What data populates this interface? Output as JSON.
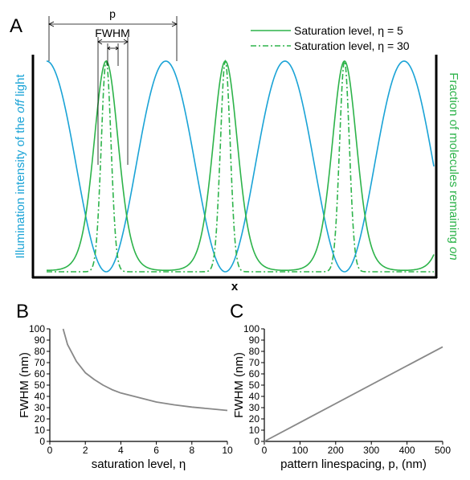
{
  "colors": {
    "illumination": "#1aa3d6",
    "molecules": "#2db34a",
    "fwhm_curve": "#888888",
    "axis": "#000000"
  },
  "figure": {
    "panel_a_label": "A",
    "panel_b_label": "B",
    "panel_c_label": "C",
    "annotation_p": "p",
    "annotation_fwhm": "FWHM"
  },
  "chart_data": [
    {
      "id": "A",
      "type": "line",
      "xlabel": "x",
      "ylabel_left_parts": [
        "Illumination intensity of the ",
        "off",
        " light"
      ],
      "ylabel_right_parts": [
        "Fraction of molecules remaining ",
        "on"
      ],
      "xlim": [
        0,
        3.25
      ],
      "ylim": [
        0,
        1
      ],
      "ticks": "none",
      "grid": false,
      "legend_position": "top-right",
      "legend": [
        {
          "label": "Saturation level, η = 5",
          "style": "solid"
        },
        {
          "label": "Saturation level, η = 30",
          "style": "dash-dot"
        }
      ],
      "series": [
        {
          "kind": "illumination",
          "formula": "cos^2(pi*x)",
          "style": "solid",
          "color_key": "illumination"
        },
        {
          "kind": "molecules",
          "eta": 5,
          "formula": "exp(-eta*cos^2(pi*x))",
          "style": "solid",
          "color_key": "molecules"
        },
        {
          "kind": "molecules",
          "eta": 30,
          "formula": "exp(-eta*cos^2(pi*x))",
          "style": "dash-dot",
          "color_key": "molecules"
        }
      ]
    },
    {
      "id": "B",
      "type": "line",
      "xlabel": "saturation level, η",
      "ylabel": "FWHM (nm)",
      "xlim": [
        0,
        10
      ],
      "ylim": [
        0,
        100
      ],
      "xticks": [
        0,
        2,
        4,
        6,
        8,
        10
      ],
      "yticks": [
        0,
        10,
        20,
        30,
        40,
        50,
        60,
        70,
        80,
        90,
        100
      ],
      "xtick_labels": [
        "0",
        "2",
        "4",
        "6",
        "8",
        "10"
      ],
      "ytick_labels": [
        "0",
        "10",
        "20",
        "30",
        "40",
        "50",
        "60",
        "70",
        "80",
        "90",
        "100"
      ],
      "grid": false,
      "series": [
        {
          "name": "",
          "x": [
            0.75,
            1,
            1.5,
            2,
            2.5,
            3,
            3.5,
            4,
            5,
            6,
            7,
            8,
            9,
            10
          ],
          "y": [
            100,
            86,
            71,
            61,
            55,
            50,
            46,
            43,
            39,
            35,
            32.5,
            30.5,
            29,
            27.5
          ]
        }
      ]
    },
    {
      "id": "C",
      "type": "line",
      "xlabel": "pattern linespacing, p, (nm)",
      "ylabel": "FWHM (nm)",
      "xlim": [
        0,
        500
      ],
      "ylim": [
        0,
        100
      ],
      "xticks": [
        0,
        100,
        200,
        300,
        400,
        500
      ],
      "yticks": [
        0,
        10,
        20,
        30,
        40,
        50,
        60,
        70,
        80,
        90,
        100
      ],
      "xtick_labels": [
        "0",
        "100",
        "200",
        "300",
        "400",
        "500"
      ],
      "ytick_labels": [
        "0",
        "10",
        "20",
        "30",
        "40",
        "50",
        "60",
        "70",
        "80",
        "90",
        "100"
      ],
      "grid": false,
      "series": [
        {
          "name": "",
          "x": [
            0,
            500
          ],
          "y": [
            0,
            84
          ]
        }
      ]
    }
  ]
}
